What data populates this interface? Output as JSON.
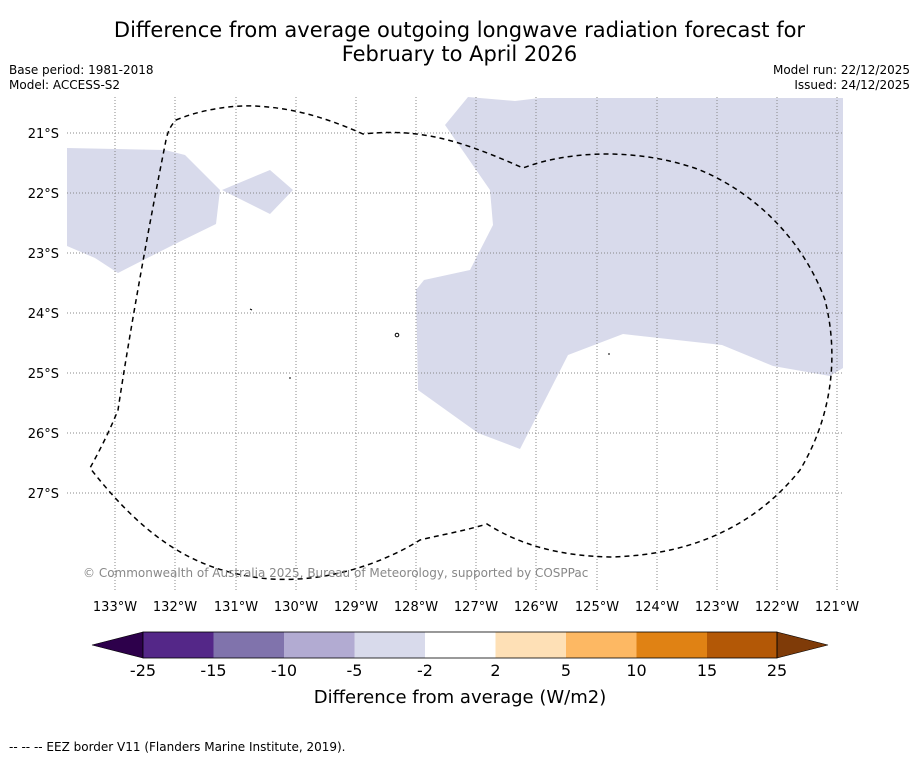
{
  "title_line1": "Difference from average outgoing longwave radiation forecast for",
  "title_line2": "February to April 2026",
  "base_period": "Base period: 1981-2018",
  "model": "Model: ACCESS-S2",
  "model_run": "Model run: 22/12/2025",
  "issued": "Issued: 24/12/2025",
  "copyright": "© Commonwealth of Australia 2025, Bureau of Meteorology, supported by COSPPac",
  "lat_labels": [
    "21°S",
    "22°S",
    "23°S",
    "24°S",
    "25°S",
    "26°S",
    "27°S"
  ],
  "lon_labels": [
    "133°W",
    "132°W",
    "131°W",
    "130°W",
    "129°W",
    "128°W",
    "127°W",
    "126°W",
    "125°W",
    "124°W",
    "123°W",
    "122°W",
    "121°W"
  ],
  "colorbar": {
    "ticks": [
      "-25",
      "-15",
      "-10",
      "-5",
      "-2",
      "2",
      "5",
      "10",
      "15",
      "25"
    ],
    "colors": [
      "#2d004b",
      "#542788",
      "#8073ac",
      "#b2abd2",
      "#d8daeb",
      "#ffffff",
      "#fee0b6",
      "#fdb863",
      "#e08214",
      "#b35806",
      "#7f3b08"
    ],
    "label": "Difference from average (W/m2)"
  },
  "anomaly_fill_color": "#d8daeb",
  "legend_line": "--  --  -- EEZ border V11 (Flanders Marine Institute, 2019)."
}
